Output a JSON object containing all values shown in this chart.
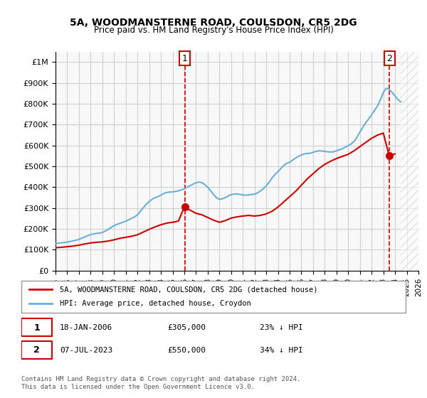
{
  "title": "5A, WOODMANSTERNE ROAD, COULSDON, CR5 2DG",
  "subtitle": "Price paid vs. HM Land Registry's House Price Index (HPI)",
  "ylim": [
    0,
    1050000
  ],
  "yticks": [
    0,
    100000,
    200000,
    300000,
    400000,
    500000,
    600000,
    700000,
    800000,
    900000,
    1000000
  ],
  "ytick_labels": [
    "£0",
    "£100K",
    "£200K",
    "£300K",
    "£400K",
    "£500K",
    "£600K",
    "£700K",
    "£800K",
    "£900K",
    "£1M"
  ],
  "x_start_year": 1995,
  "x_end_year": 2026,
  "legend_line1": "5A, WOODMANSTERNE ROAD, COULSDON, CR5 2DG (detached house)",
  "legend_line2": "HPI: Average price, detached house, Croydon",
  "sale1_label": "1",
  "sale1_date": "18-JAN-2006",
  "sale1_price": "£305,000",
  "sale1_info": "23% ↓ HPI",
  "sale1_year": 2006.05,
  "sale1_value": 305000,
  "sale2_label": "2",
  "sale2_date": "07-JUL-2023",
  "sale2_price": "£550,000",
  "sale2_info": "34% ↓ HPI",
  "sale2_year": 2023.52,
  "sale2_value": 550000,
  "hpi_color": "#6ab0d8",
  "price_color": "#cc0000",
  "marker_color": "#cc0000",
  "annotation_box_color": "#cc0000",
  "footer": "Contains HM Land Registry data © Crown copyright and database right 2024.\nThis data is licensed under the Open Government Licence v3.0.",
  "background_color": "#ffffff",
  "grid_color": "#d0d0d0",
  "hpi_data_x": [
    1995,
    1995.25,
    1995.5,
    1995.75,
    1996,
    1996.25,
    1996.5,
    1996.75,
    1997,
    1997.25,
    1997.5,
    1997.75,
    1998,
    1998.25,
    1998.5,
    1998.75,
    1999,
    1999.25,
    1999.5,
    1999.75,
    2000,
    2000.25,
    2000.5,
    2000.75,
    2001,
    2001.25,
    2001.5,
    2001.75,
    2002,
    2002.25,
    2002.5,
    2002.75,
    2003,
    2003.25,
    2003.5,
    2003.75,
    2004,
    2004.25,
    2004.5,
    2004.75,
    2005,
    2005.25,
    2005.5,
    2005.75,
    2006,
    2006.25,
    2006.5,
    2006.75,
    2007,
    2007.25,
    2007.5,
    2007.75,
    2008,
    2008.25,
    2008.5,
    2008.75,
    2009,
    2009.25,
    2009.5,
    2009.75,
    2010,
    2010.25,
    2010.5,
    2010.75,
    2011,
    2011.25,
    2011.5,
    2011.75,
    2012,
    2012.25,
    2012.5,
    2012.75,
    2013,
    2013.25,
    2013.5,
    2013.75,
    2014,
    2014.25,
    2014.5,
    2014.75,
    2015,
    2015.25,
    2015.5,
    2015.75,
    2016,
    2016.25,
    2016.5,
    2016.75,
    2017,
    2017.25,
    2017.5,
    2017.75,
    2018,
    2018.25,
    2018.5,
    2018.75,
    2019,
    2019.25,
    2019.5,
    2019.75,
    2020,
    2020.25,
    2020.5,
    2020.75,
    2021,
    2021.25,
    2021.5,
    2021.75,
    2022,
    2022.25,
    2022.5,
    2022.75,
    2023,
    2023.25,
    2023.5,
    2023.75,
    2024,
    2024.25,
    2024.5
  ],
  "hpi_data_y": [
    130000,
    132000,
    133000,
    135000,
    137000,
    140000,
    143000,
    146000,
    150000,
    156000,
    162000,
    168000,
    173000,
    176000,
    179000,
    180000,
    183000,
    190000,
    198000,
    207000,
    216000,
    222000,
    227000,
    232000,
    237000,
    244000,
    251000,
    258000,
    268000,
    285000,
    302000,
    318000,
    332000,
    342000,
    350000,
    355000,
    362000,
    370000,
    375000,
    377000,
    378000,
    380000,
    383000,
    387000,
    393000,
    400000,
    408000,
    415000,
    422000,
    425000,
    422000,
    413000,
    400000,
    383000,
    365000,
    350000,
    342000,
    345000,
    350000,
    358000,
    365000,
    367000,
    368000,
    366000,
    363000,
    362000,
    363000,
    365000,
    367000,
    373000,
    382000,
    393000,
    407000,
    424000,
    445000,
    462000,
    475000,
    490000,
    505000,
    515000,
    520000,
    530000,
    540000,
    548000,
    555000,
    560000,
    562000,
    563000,
    568000,
    572000,
    575000,
    574000,
    572000,
    570000,
    569000,
    570000,
    575000,
    580000,
    585000,
    592000,
    600000,
    608000,
    620000,
    640000,
    665000,
    688000,
    710000,
    728000,
    748000,
    768000,
    790000,
    820000,
    855000,
    875000,
    870000,
    855000,
    838000,
    820000,
    810000
  ],
  "price_data_x": [
    1995,
    1995.5,
    1996,
    1996.5,
    1997,
    1997.5,
    1998,
    1998.5,
    1999,
    1999.5,
    2000,
    2000.5,
    2001,
    2001.5,
    2002,
    2002.5,
    2003,
    2003.5,
    2004,
    2004.5,
    2005,
    2005.5,
    2006,
    2006.5,
    2007,
    2007.5,
    2008,
    2008.5,
    2009,
    2009.5,
    2010,
    2010.5,
    2011,
    2011.5,
    2012,
    2012.5,
    2013,
    2013.5,
    2014,
    2014.5,
    2015,
    2015.5,
    2016,
    2016.5,
    2017,
    2017.5,
    2018,
    2018.5,
    2019,
    2019.5,
    2020,
    2020.5,
    2021,
    2021.5,
    2022,
    2022.5,
    2023,
    2023.5,
    2024
  ],
  "price_data_y": [
    110000,
    112000,
    115000,
    118000,
    122000,
    128000,
    133000,
    136000,
    138000,
    142000,
    148000,
    155000,
    160000,
    165000,
    172000,
    185000,
    198000,
    210000,
    220000,
    228000,
    232000,
    238000,
    305000,
    290000,
    275000,
    268000,
    255000,
    242000,
    232000,
    240000,
    252000,
    258000,
    262000,
    265000,
    262000,
    265000,
    272000,
    285000,
    305000,
    330000,
    355000,
    380000,
    410000,
    440000,
    465000,
    490000,
    510000,
    525000,
    538000,
    548000,
    558000,
    575000,
    595000,
    615000,
    635000,
    650000,
    660000,
    550000,
    560000
  ]
}
